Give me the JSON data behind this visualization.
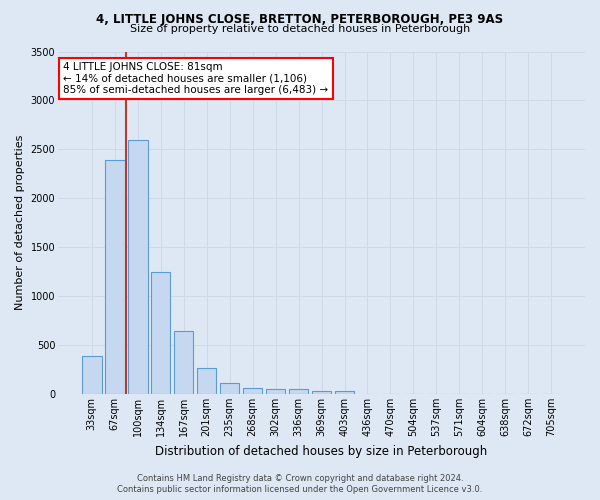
{
  "title": "4, LITTLE JOHNS CLOSE, BRETTON, PETERBOROUGH, PE3 9AS",
  "subtitle": "Size of property relative to detached houses in Peterborough",
  "xlabel": "Distribution of detached houses by size in Peterborough",
  "ylabel": "Number of detached properties",
  "footer_line1": "Contains HM Land Registry data © Crown copyright and database right 2024.",
  "footer_line2": "Contains public sector information licensed under the Open Government Licence v3.0.",
  "bin_labels": [
    "33sqm",
    "67sqm",
    "100sqm",
    "134sqm",
    "167sqm",
    "201sqm",
    "235sqm",
    "268sqm",
    "302sqm",
    "336sqm",
    "369sqm",
    "403sqm",
    "436sqm",
    "470sqm",
    "504sqm",
    "537sqm",
    "571sqm",
    "604sqm",
    "638sqm",
    "672sqm",
    "705sqm"
  ],
  "bar_values": [
    390,
    2390,
    2600,
    1250,
    640,
    265,
    110,
    60,
    55,
    50,
    35,
    30,
    0,
    0,
    0,
    0,
    0,
    0,
    0,
    0,
    0
  ],
  "bar_color": "#c5d8f0",
  "bar_edge_color": "#5b9bd5",
  "annotation_line1": "4 LITTLE JOHNS CLOSE: 81sqm",
  "annotation_line2": "← 14% of detached houses are smaller (1,106)",
  "annotation_line3": "85% of semi-detached houses are larger (6,483) →",
  "annotation_box_color": "white",
  "annotation_box_edge_color": "red",
  "vline_x": 1.5,
  "vline_color": "#c0392b",
  "grid_color": "#d0d8e8",
  "bg_color": "#dde8f4",
  "plot_bg_color": "#dde8f4",
  "ylim": [
    0,
    3500
  ],
  "yticks": [
    0,
    500,
    1000,
    1500,
    2000,
    2500,
    3000,
    3500
  ],
  "title_fontsize": 8.5,
  "subtitle_fontsize": 8.0,
  "ylabel_fontsize": 8.0,
  "xlabel_fontsize": 8.5,
  "tick_fontsize": 7.0,
  "annot_fontsize": 7.5,
  "footer_fontsize": 6.0
}
